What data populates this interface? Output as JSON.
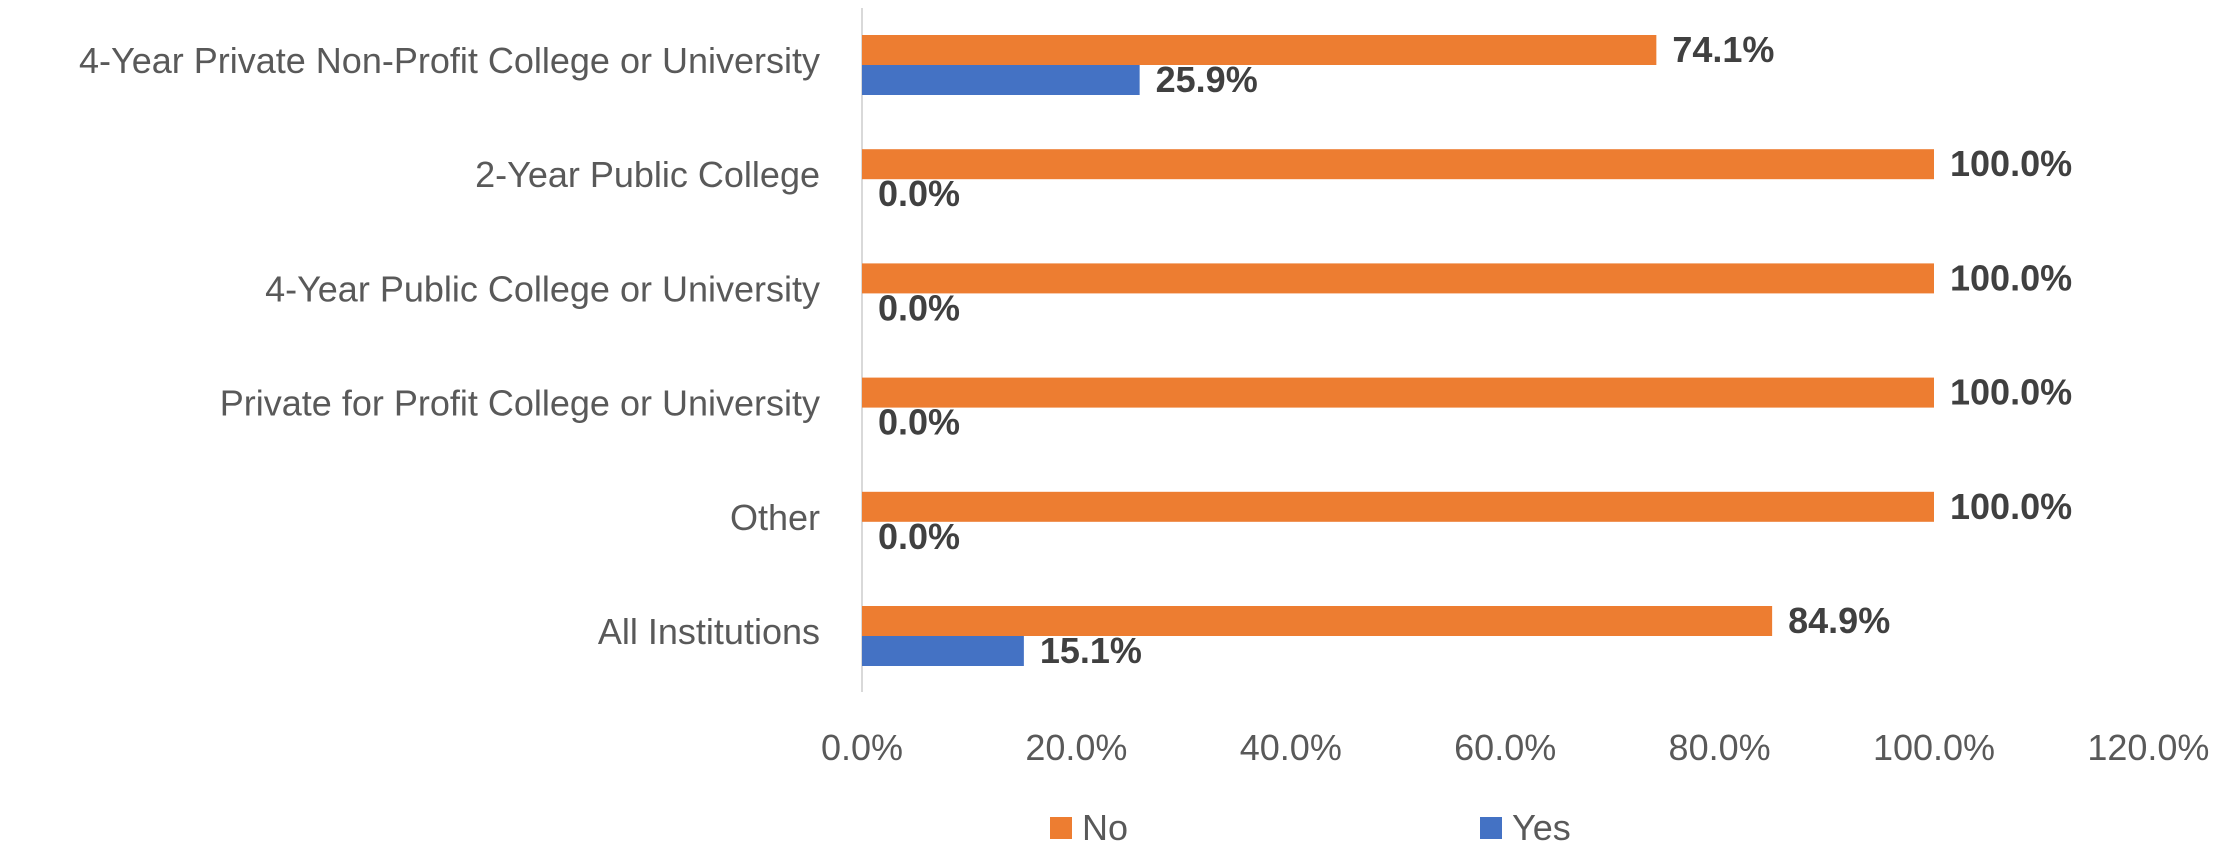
{
  "chart_data": {
    "type": "bar",
    "orientation": "horizontal",
    "categories": [
      "4-Year Private Non-Profit College or University",
      "2-Year Public College",
      "4-Year Public College or University",
      "Private for Profit College or University",
      "Other",
      "All Institutions"
    ],
    "series": [
      {
        "name": "No",
        "color": "#ED7D31",
        "values": [
          74.1,
          100.0,
          100.0,
          100.0,
          100.0,
          84.9
        ],
        "labels": [
          "74.1%",
          "100.0%",
          "100.0%",
          "100.0%",
          "100.0%",
          "84.9%"
        ]
      },
      {
        "name": "Yes",
        "color": "#4472C4",
        "values": [
          25.9,
          0.0,
          0.0,
          0.0,
          0.0,
          15.1
        ],
        "labels": [
          "25.9%",
          "0.0%",
          "0.0%",
          "0.0%",
          "0.0%",
          "15.1%"
        ]
      }
    ],
    "x_ticks": [
      "0.0%",
      "20.0%",
      "40.0%",
      "60.0%",
      "80.0%",
      "100.0%",
      "120.0%"
    ],
    "xlim": [
      0,
      120
    ],
    "title": "",
    "xlabel": "",
    "ylabel": "",
    "grid": false,
    "legend_position": "bottom"
  }
}
